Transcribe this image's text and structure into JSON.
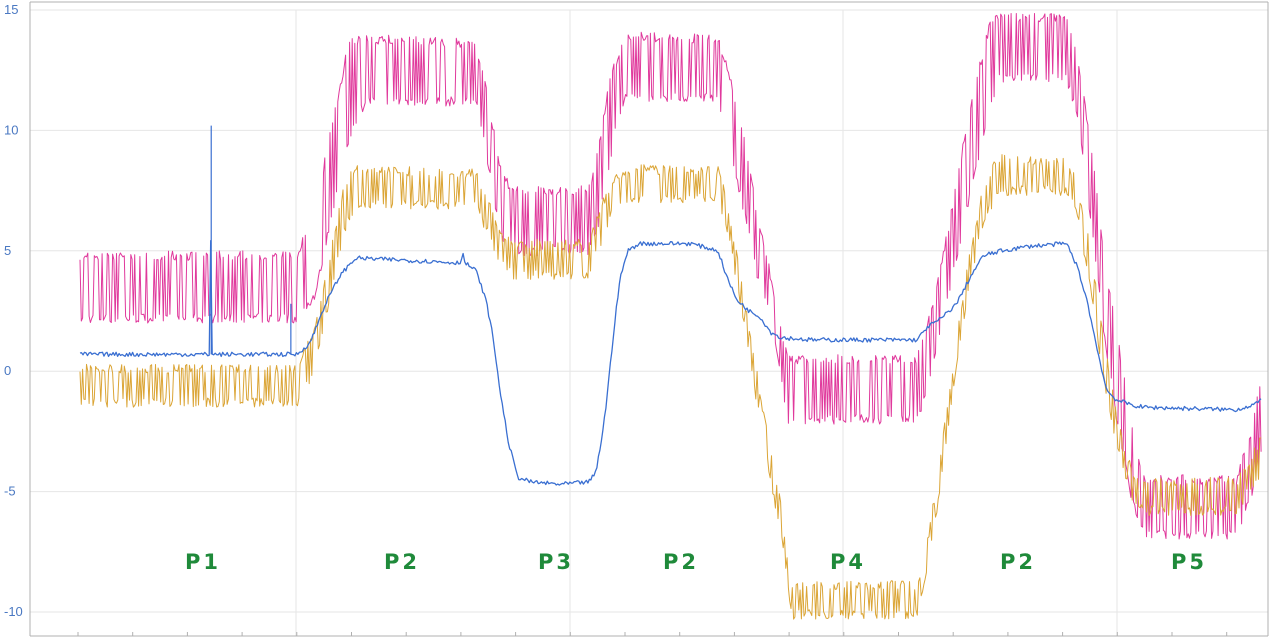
{
  "chart_data": {
    "type": "line",
    "title": "",
    "xlabel": "",
    "ylabel": "",
    "ylim": [
      -10.5,
      15
    ],
    "yticks": [
      {
        "value": 15,
        "label": "15"
      },
      {
        "value": 10,
        "label": "10"
      },
      {
        "value": 5,
        "label": "5"
      },
      {
        "value": 0,
        "label": "0"
      },
      {
        "value": -5,
        "label": "-5"
      },
      {
        "value": -10,
        "label": "-10"
      }
    ],
    "grid": true,
    "colors": {
      "magenta": "#e0399c",
      "orange": "#dba536",
      "blue": "#3a6fd1",
      "grid": "#e6e6e6",
      "axis": "#b0b0b0",
      "phase": "#1f8a3a"
    },
    "phases": [
      "P1",
      "P2",
      "P3",
      "P2",
      "P4",
      "P2",
      "P5"
    ],
    "series": [
      {
        "color": "#e0399c",
        "noisy": true,
        "low": [
          [
            0,
            2
          ],
          [
            217,
            2
          ],
          [
            235,
            3
          ],
          [
            255,
            7
          ],
          [
            272,
            10
          ],
          [
            285,
            11
          ],
          [
            395,
            11
          ],
          [
            405,
            9
          ],
          [
            420,
            5.5
          ],
          [
            432,
            4.8
          ],
          [
            508,
            4.8
          ],
          [
            518,
            6
          ],
          [
            535,
            10
          ],
          [
            545,
            11.2
          ],
          [
            637,
            11.2
          ],
          [
            645,
            9.8
          ],
          [
            660,
            7
          ],
          [
            675,
            4
          ],
          [
            690,
            2
          ],
          [
            706,
            -2.2
          ],
          [
            836,
            -2.2
          ],
          [
            848,
            -0.5
          ],
          [
            862,
            2
          ],
          [
            875,
            4.5
          ],
          [
            888,
            7
          ],
          [
            902,
            9.5
          ],
          [
            916,
            12
          ],
          [
            985,
            12
          ],
          [
            995,
            10.5
          ],
          [
            1008,
            6.5
          ],
          [
            1022,
            1.5
          ],
          [
            1036,
            -2.5
          ],
          [
            1050,
            -5.5
          ],
          [
            1062,
            -7
          ],
          [
            1155,
            -7
          ],
          [
            1168,
            -5.5
          ],
          [
            1180,
            -3.5
          ]
        ],
        "high": [
          [
            0,
            5
          ],
          [
            217,
            5
          ],
          [
            235,
            7
          ],
          [
            255,
            11
          ],
          [
            268,
            13.8
          ],
          [
            285,
            14
          ],
          [
            395,
            13.8
          ],
          [
            405,
            12
          ],
          [
            420,
            8.5
          ],
          [
            432,
            7.7
          ],
          [
            508,
            7.7
          ],
          [
            518,
            9.5
          ],
          [
            530,
            12.5
          ],
          [
            545,
            14.1
          ],
          [
            637,
            14
          ],
          [
            645,
            13
          ],
          [
            660,
            10.5
          ],
          [
            675,
            7
          ],
          [
            690,
            4
          ],
          [
            706,
            0.7
          ],
          [
            836,
            0.7
          ],
          [
            848,
            2.5
          ],
          [
            862,
            5
          ],
          [
            875,
            8
          ],
          [
            888,
            11
          ],
          [
            902,
            13.5
          ],
          [
            910,
            14.9
          ],
          [
            985,
            14.9
          ],
          [
            995,
            13.5
          ],
          [
            1008,
            10
          ],
          [
            1022,
            5
          ],
          [
            1036,
            1.5
          ],
          [
            1050,
            -2
          ],
          [
            1062,
            -4.3
          ],
          [
            1155,
            -4.3
          ],
          [
            1168,
            -2.5
          ],
          [
            1180,
            0
          ]
        ]
      },
      {
        "color": "#dba536",
        "noisy": true,
        "low": [
          [
            0,
            -1.5
          ],
          [
            217,
            -1.5
          ],
          [
            235,
            0
          ],
          [
            250,
            3
          ],
          [
            263,
            5.5
          ],
          [
            275,
            6.7
          ],
          [
            395,
            6.7
          ],
          [
            405,
            5.8
          ],
          [
            420,
            4.3
          ],
          [
            432,
            3.8
          ],
          [
            508,
            3.8
          ],
          [
            518,
            5
          ],
          [
            532,
            6.5
          ],
          [
            545,
            7
          ],
          [
            637,
            7
          ],
          [
            645,
            6
          ],
          [
            660,
            2.5
          ],
          [
            680,
            -2.5
          ],
          [
            700,
            -7
          ],
          [
            710,
            -10.3
          ],
          [
            836,
            -10.3
          ],
          [
            848,
            -8
          ],
          [
            862,
            -4
          ],
          [
            875,
            0
          ],
          [
            888,
            3.5
          ],
          [
            902,
            6
          ],
          [
            916,
            7.3
          ],
          [
            985,
            7.3
          ],
          [
            995,
            6.5
          ],
          [
            1008,
            3.5
          ],
          [
            1022,
            -0.5
          ],
          [
            1036,
            -3.5
          ],
          [
            1050,
            -5.5
          ],
          [
            1062,
            -6
          ],
          [
            1155,
            -6
          ],
          [
            1168,
            -5
          ],
          [
            1180,
            -4.5
          ]
        ],
        "high": [
          [
            0,
            0.3
          ],
          [
            217,
            0.3
          ],
          [
            235,
            2
          ],
          [
            250,
            5
          ],
          [
            263,
            7.8
          ],
          [
            275,
            8.6
          ],
          [
            395,
            8.4
          ],
          [
            405,
            7.5
          ],
          [
            420,
            5.8
          ],
          [
            432,
            5.5
          ],
          [
            508,
            5.5
          ],
          [
            518,
            6.8
          ],
          [
            532,
            8
          ],
          [
            545,
            8.6
          ],
          [
            637,
            8.5
          ],
          [
            645,
            7.5
          ],
          [
            660,
            4
          ],
          [
            680,
            -1
          ],
          [
            700,
            -5.5
          ],
          [
            710,
            -8.7
          ],
          [
            836,
            -8.7
          ],
          [
            848,
            -6.5
          ],
          [
            862,
            -2.5
          ],
          [
            875,
            1.5
          ],
          [
            888,
            5
          ],
          [
            902,
            7.8
          ],
          [
            916,
            9
          ],
          [
            985,
            8.9
          ],
          [
            995,
            8
          ],
          [
            1008,
            5.5
          ],
          [
            1022,
            1.5
          ],
          [
            1036,
            -2
          ],
          [
            1050,
            -4
          ],
          [
            1062,
            -4.4
          ],
          [
            1155,
            -4.4
          ],
          [
            1168,
            -3.5
          ],
          [
            1180,
            -2.5
          ]
        ]
      },
      {
        "color": "#3a6fd1",
        "noisy": false,
        "points": [
          [
            0,
            0.7
          ],
          [
            130,
            0.7
          ],
          [
            131,
            10.2
          ],
          [
            132,
            0.7
          ],
          [
            210,
            0.7
          ],
          [
            210.5,
            2.8
          ],
          [
            211,
            0.7
          ],
          [
            217,
            0.7
          ],
          [
            230,
            1.2
          ],
          [
            245,
            2.8
          ],
          [
            260,
            4
          ],
          [
            275,
            4.7
          ],
          [
            330,
            4.6
          ],
          [
            380,
            4.5
          ],
          [
            382,
            5
          ],
          [
            384,
            4.5
          ],
          [
            395,
            4.2
          ],
          [
            405,
            3
          ],
          [
            412,
            1.5
          ],
          [
            420,
            -1
          ],
          [
            428,
            -3
          ],
          [
            437,
            -4.4
          ],
          [
            450,
            -4.6
          ],
          [
            480,
            -4.7
          ],
          [
            508,
            -4.6
          ],
          [
            515,
            -4.2
          ],
          [
            520,
            -3
          ],
          [
            525,
            -1.5
          ],
          [
            530,
            0.5
          ],
          [
            535,
            2.5
          ],
          [
            540,
            4
          ],
          [
            547,
            5
          ],
          [
            558,
            5.3
          ],
          [
            610,
            5.3
          ],
          [
            637,
            5
          ],
          [
            645,
            4
          ],
          [
            655,
            3
          ],
          [
            668,
            2.5
          ],
          [
            678,
            2.3
          ],
          [
            690,
            1.6
          ],
          [
            700,
            1.4
          ],
          [
            730,
            1.3
          ],
          [
            800,
            1.3
          ],
          [
            836,
            1.3
          ],
          [
            845,
            1.8
          ],
          [
            860,
            2.2
          ],
          [
            875,
            2.8
          ],
          [
            890,
            4
          ],
          [
            902,
            4.8
          ],
          [
            920,
            5
          ],
          [
            950,
            5.2
          ],
          [
            985,
            5.3
          ],
          [
            995,
            4.4
          ],
          [
            1005,
            3
          ],
          [
            1015,
            1
          ],
          [
            1025,
            -0.8
          ],
          [
            1035,
            -1.2
          ],
          [
            1050,
            -1.4
          ],
          [
            1062,
            -1.5
          ],
          [
            1155,
            -1.6
          ],
          [
            1170,
            -1.4
          ],
          [
            1180,
            -1.2
          ]
        ]
      }
    ]
  }
}
